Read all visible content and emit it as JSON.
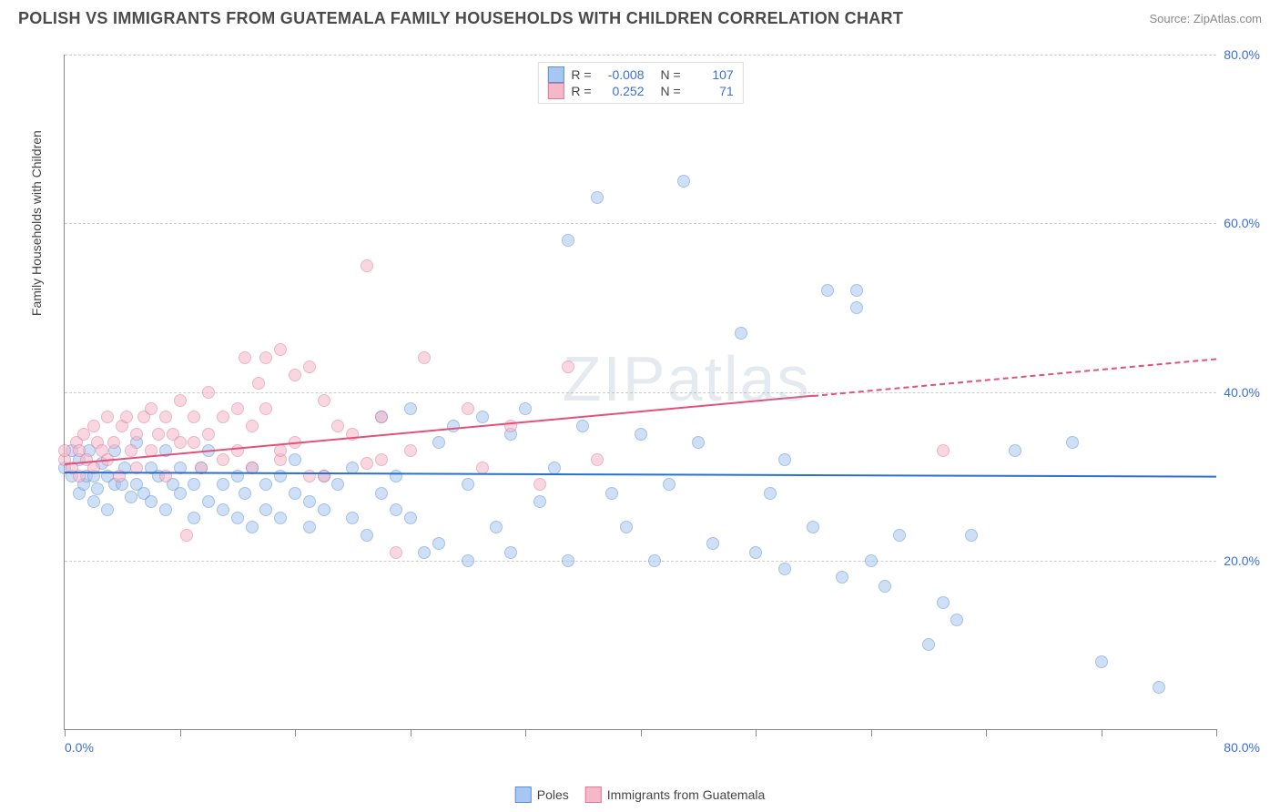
{
  "header": {
    "title": "POLISH VS IMMIGRANTS FROM GUATEMALA FAMILY HOUSEHOLDS WITH CHILDREN CORRELATION CHART",
    "source": "Source: ZipAtlas.com"
  },
  "chart": {
    "type": "scatter",
    "ylabel": "Family Households with Children",
    "xlim": [
      0,
      80
    ],
    "ylim": [
      0,
      80
    ],
    "x_ticks": [
      0,
      8,
      16,
      24,
      32,
      40,
      48,
      56,
      64,
      72,
      80
    ],
    "y_ticks": [
      20,
      40,
      60,
      80
    ],
    "x_tick_labels": {
      "0": "0.0%",
      "80": "80.0%"
    },
    "y_tick_labels": {
      "20": "20.0%",
      "40": "40.0%",
      "60": "60.0%",
      "80": "80.0%"
    },
    "background_color": "#ffffff",
    "grid_color": "#cccccc",
    "axis_color": "#888888",
    "tick_label_color": "#3b6fd8",
    "marker_radius": 7,
    "marker_opacity": 0.55,
    "watermark": "ZIPatlas"
  },
  "series": [
    {
      "id": "poles",
      "label": "Poles",
      "fill": "#a8c7f0",
      "stroke": "#5a8fd6",
      "trend_color": "#2b6fd0",
      "r_value": "-0.008",
      "n_value": "107",
      "trend": {
        "x1": 0,
        "y1": 30.5,
        "x2": 80,
        "y2": 30.0,
        "solid_until_x": 80
      },
      "points": [
        [
          0,
          31
        ],
        [
          0.5,
          33
        ],
        [
          0.5,
          30
        ],
        [
          1,
          28
        ],
        [
          1,
          32
        ],
        [
          1.3,
          29
        ],
        [
          1.5,
          30
        ],
        [
          1.7,
          33
        ],
        [
          2,
          30
        ],
        [
          2,
          27
        ],
        [
          2.3,
          28.5
        ],
        [
          2.6,
          31.5
        ],
        [
          3,
          26
        ],
        [
          3,
          30
        ],
        [
          3.5,
          29
        ],
        [
          3.5,
          33
        ],
        [
          4,
          29
        ],
        [
          4.2,
          31
        ],
        [
          4.6,
          27.5
        ],
        [
          5,
          29
        ],
        [
          5,
          34
        ],
        [
          5.5,
          28
        ],
        [
          6,
          27
        ],
        [
          6,
          31
        ],
        [
          6.5,
          30
        ],
        [
          7,
          26
        ],
        [
          7,
          33
        ],
        [
          7.5,
          29
        ],
        [
          8,
          28
        ],
        [
          8,
          31
        ],
        [
          9,
          25
        ],
        [
          9,
          29
        ],
        [
          9.5,
          31
        ],
        [
          10,
          27
        ],
        [
          10,
          33
        ],
        [
          11,
          29
        ],
        [
          11,
          26
        ],
        [
          12,
          25
        ],
        [
          12,
          30
        ],
        [
          12.5,
          28
        ],
        [
          13,
          31
        ],
        [
          13,
          24
        ],
        [
          14,
          26
        ],
        [
          14,
          29
        ],
        [
          15,
          30
        ],
        [
          15,
          25
        ],
        [
          16,
          28
        ],
        [
          16,
          32
        ],
        [
          17,
          24
        ],
        [
          17,
          27
        ],
        [
          18,
          30
        ],
        [
          18,
          26
        ],
        [
          19,
          29
        ],
        [
          20,
          25
        ],
        [
          20,
          31
        ],
        [
          21,
          23
        ],
        [
          22,
          28
        ],
        [
          22,
          37
        ],
        [
          23,
          26
        ],
        [
          23,
          30
        ],
        [
          24,
          38
        ],
        [
          24,
          25
        ],
        [
          25,
          21
        ],
        [
          26,
          34
        ],
        [
          26,
          22
        ],
        [
          27,
          36
        ],
        [
          28,
          20
        ],
        [
          28,
          29
        ],
        [
          29,
          37
        ],
        [
          30,
          24
        ],
        [
          31,
          35
        ],
        [
          31,
          21
        ],
        [
          32,
          38
        ],
        [
          33,
          27
        ],
        [
          34,
          31
        ],
        [
          35,
          20
        ],
        [
          35,
          58
        ],
        [
          36,
          36
        ],
        [
          37,
          63
        ],
        [
          38,
          28
        ],
        [
          39,
          24
        ],
        [
          40,
          35
        ],
        [
          41,
          20
        ],
        [
          42,
          29
        ],
        [
          43,
          65
        ],
        [
          44,
          34
        ],
        [
          45,
          22
        ],
        [
          47,
          47
        ],
        [
          48,
          21
        ],
        [
          49,
          28
        ],
        [
          50,
          19
        ],
        [
          50,
          32
        ],
        [
          52,
          24
        ],
        [
          53,
          52
        ],
        [
          54,
          18
        ],
        [
          55,
          50
        ],
        [
          55,
          52
        ],
        [
          56,
          20
        ],
        [
          57,
          17
        ],
        [
          58,
          23
        ],
        [
          60,
          10
        ],
        [
          61,
          15
        ],
        [
          62,
          13
        ],
        [
          63,
          23
        ],
        [
          66,
          33
        ],
        [
          70,
          34
        ],
        [
          72,
          8
        ],
        [
          76,
          5
        ]
      ]
    },
    {
      "id": "guatemala",
      "label": "Immigrants from Guatemala",
      "fill": "#f5b8c8",
      "stroke": "#e07898",
      "trend_color": "#e0527a",
      "r_value": "0.252",
      "n_value": "71",
      "trend": {
        "x1": 0,
        "y1": 31.5,
        "x2": 80,
        "y2": 44.0,
        "solid_until_x": 52
      },
      "points": [
        [
          0,
          32
        ],
        [
          0,
          33
        ],
        [
          0.5,
          31
        ],
        [
          0.8,
          34
        ],
        [
          1,
          30
        ],
        [
          1,
          33
        ],
        [
          1.3,
          35
        ],
        [
          1.5,
          32
        ],
        [
          2,
          31
        ],
        [
          2,
          36
        ],
        [
          2.3,
          34
        ],
        [
          2.6,
          33
        ],
        [
          3,
          32
        ],
        [
          3,
          37
        ],
        [
          3.4,
          34
        ],
        [
          3.8,
          30
        ],
        [
          4,
          36
        ],
        [
          4.3,
          37
        ],
        [
          4.6,
          33
        ],
        [
          5,
          35
        ],
        [
          5,
          31
        ],
        [
          5.5,
          37
        ],
        [
          6,
          33
        ],
        [
          6,
          38
        ],
        [
          6.5,
          35
        ],
        [
          7,
          30
        ],
        [
          7,
          37
        ],
        [
          7.5,
          35
        ],
        [
          8,
          34
        ],
        [
          8,
          39
        ],
        [
          8.5,
          23
        ],
        [
          9,
          34
        ],
        [
          9,
          37
        ],
        [
          9.5,
          31
        ],
        [
          10,
          35
        ],
        [
          10,
          40
        ],
        [
          11,
          37
        ],
        [
          11,
          32
        ],
        [
          12,
          38
        ],
        [
          12,
          33
        ],
        [
          12.5,
          44
        ],
        [
          13,
          36
        ],
        [
          13,
          31
        ],
        [
          13.5,
          41
        ],
        [
          14,
          44
        ],
        [
          14,
          38
        ],
        [
          15,
          32
        ],
        [
          15,
          33
        ],
        [
          15,
          45
        ],
        [
          16,
          42
        ],
        [
          16,
          34
        ],
        [
          17,
          30
        ],
        [
          17,
          43
        ],
        [
          18,
          39
        ],
        [
          18,
          30
        ],
        [
          19,
          36
        ],
        [
          20,
          35
        ],
        [
          21,
          31.5
        ],
        [
          21,
          55
        ],
        [
          22,
          32
        ],
        [
          22,
          37
        ],
        [
          23,
          21
        ],
        [
          24,
          33
        ],
        [
          25,
          44
        ],
        [
          28,
          38
        ],
        [
          29,
          31
        ],
        [
          31,
          36
        ],
        [
          33,
          29
        ],
        [
          35,
          43
        ],
        [
          37,
          32
        ],
        [
          61,
          33
        ]
      ]
    }
  ],
  "legend_top": {
    "r_label": "R =",
    "n_label": "N ="
  },
  "legend_bottom": [
    {
      "swatch_fill": "#a8c7f0",
      "swatch_stroke": "#5a8fd6",
      "label": "Poles"
    },
    {
      "swatch_fill": "#f5b8c8",
      "swatch_stroke": "#e07898",
      "label": "Immigrants from Guatemala"
    }
  ]
}
